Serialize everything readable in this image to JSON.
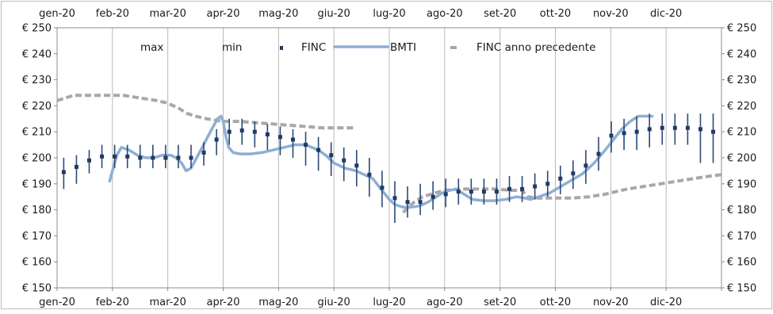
{
  "chart_data": {
    "type": "line",
    "title": "",
    "xlabel": "",
    "ylabel": "",
    "x_tick_labels": [
      "gen-20",
      "feb-20",
      "mar-20",
      "apr-20",
      "mag-20",
      "giu-20",
      "lug-20",
      "ago-20",
      "set-20",
      "ott-20",
      "nov-20",
      "dic-20"
    ],
    "y_tick_labels": [
      "€ 150",
      "€ 160",
      "€ 170",
      "€ 180",
      "€ 190",
      "€ 200",
      "€ 210",
      "€ 220",
      "€ 230",
      "€ 240",
      "€ 250"
    ],
    "ylim": [
      150,
      250
    ],
    "x_unit": "months (0 = start of gen-20)",
    "xlim": [
      0,
      12
    ],
    "grid": "vertical",
    "legend_position": "top",
    "legend": {
      "max": "max",
      "min": "min",
      "finc": "FINC",
      "bmti": "BMTI",
      "finc_prev": "FINC anno precedente"
    },
    "colors": {
      "finc": "#1f3b63",
      "range": "#2a4a74",
      "bmti": "#8eaed6",
      "finc_prev": "#a8a8a8",
      "grid": "#b9b9b9",
      "axis": "#8c8c8c",
      "frame": "#bcbcbc"
    },
    "weekly": [
      {
        "x": 0.12,
        "finc": 194.5,
        "min": 188,
        "max": 200
      },
      {
        "x": 0.35,
        "finc": 196.5,
        "min": 190,
        "max": 201
      },
      {
        "x": 0.58,
        "finc": 199,
        "min": 194,
        "max": 203
      },
      {
        "x": 0.81,
        "finc": 200.5,
        "min": 196,
        "max": 205
      },
      {
        "x": 1.04,
        "finc": 200.5,
        "min": 196,
        "max": 205
      },
      {
        "x": 1.27,
        "finc": 200.5,
        "min": 196,
        "max": 205
      },
      {
        "x": 1.5,
        "finc": 200,
        "min": 196,
        "max": 205
      },
      {
        "x": 1.73,
        "finc": 200,
        "min": 196,
        "max": 205
      },
      {
        "x": 1.96,
        "finc": 200,
        "min": 196,
        "max": 205
      },
      {
        "x": 2.19,
        "finc": 200,
        "min": 196,
        "max": 205
      },
      {
        "x": 2.42,
        "finc": 200,
        "min": 196,
        "max": 205
      },
      {
        "x": 2.65,
        "finc": 202,
        "min": 197,
        "max": 206
      },
      {
        "x": 2.88,
        "finc": 207,
        "min": 201,
        "max": 211
      },
      {
        "x": 3.11,
        "finc": 210,
        "min": 205,
        "max": 215
      },
      {
        "x": 3.34,
        "finc": 210.5,
        "min": 205,
        "max": 215
      },
      {
        "x": 3.57,
        "finc": 210,
        "min": 204,
        "max": 214
      },
      {
        "x": 3.8,
        "finc": 209,
        "min": 203,
        "max": 213
      },
      {
        "x": 4.03,
        "finc": 208,
        "min": 201,
        "max": 212
      },
      {
        "x": 4.26,
        "finc": 207,
        "min": 200,
        "max": 211
      },
      {
        "x": 4.49,
        "finc": 205,
        "min": 197,
        "max": 210
      },
      {
        "x": 4.72,
        "finc": 203,
        "min": 195,
        "max": 208
      },
      {
        "x": 4.95,
        "finc": 201,
        "min": 193,
        "max": 206
      },
      {
        "x": 5.18,
        "finc": 199,
        "min": 191,
        "max": 204
      },
      {
        "x": 5.41,
        "finc": 197,
        "min": 189,
        "max": 203
      },
      {
        "x": 5.64,
        "finc": 193.5,
        "min": 185,
        "max": 200
      },
      {
        "x": 5.87,
        "finc": 188.5,
        "min": 181,
        "max": 195
      },
      {
        "x": 6.1,
        "finc": 184.5,
        "min": 175,
        "max": 191
      },
      {
        "x": 6.33,
        "finc": 183,
        "min": 177,
        "max": 189
      },
      {
        "x": 6.56,
        "finc": 183,
        "min": 178,
        "max": 190
      },
      {
        "x": 6.79,
        "finc": 185,
        "min": 180,
        "max": 191
      },
      {
        "x": 7.02,
        "finc": 186,
        "min": 181,
        "max": 192
      },
      {
        "x": 7.25,
        "finc": 187,
        "min": 182,
        "max": 192
      },
      {
        "x": 7.48,
        "finc": 187,
        "min": 182,
        "max": 192
      },
      {
        "x": 7.71,
        "finc": 187,
        "min": 182,
        "max": 192
      },
      {
        "x": 7.94,
        "finc": 187,
        "min": 182,
        "max": 192
      },
      {
        "x": 8.17,
        "finc": 188,
        "min": 183,
        "max": 193
      },
      {
        "x": 8.4,
        "finc": 188,
        "min": 183,
        "max": 193
      },
      {
        "x": 8.63,
        "finc": 189,
        "min": 184,
        "max": 194
      },
      {
        "x": 8.86,
        "finc": 190,
        "min": 185,
        "max": 195
      },
      {
        "x": 9.09,
        "finc": 192,
        "min": 186,
        "max": 197
      },
      {
        "x": 9.32,
        "finc": 194,
        "min": 188,
        "max": 199
      },
      {
        "x": 9.55,
        "finc": 197,
        "min": 190,
        "max": 203
      },
      {
        "x": 9.78,
        "finc": 201.5,
        "min": 195,
        "max": 208
      },
      {
        "x": 10.01,
        "finc": 208.5,
        "min": 202,
        "max": 214
      },
      {
        "x": 10.24,
        "finc": 209.5,
        "min": 203,
        "max": 215
      },
      {
        "x": 10.47,
        "finc": 210,
        "min": 203,
        "max": 216
      },
      {
        "x": 10.7,
        "finc": 211,
        "min": 204,
        "max": 217
      },
      {
        "x": 10.93,
        "finc": 211.5,
        "min": 205,
        "max": 217
      },
      {
        "x": 11.16,
        "finc": 211.5,
        "min": 205,
        "max": 217
      },
      {
        "x": 11.39,
        "finc": 211.5,
        "min": 205,
        "max": 217
      },
      {
        "x": 11.62,
        "finc": 211,
        "min": 198,
        "max": 217
      },
      {
        "x": 11.85,
        "finc": 210,
        "min": 198,
        "max": 217
      }
    ],
    "bmti": [
      [
        0.95,
        191
      ],
      [
        1.0,
        195
      ],
      [
        1.08,
        201
      ],
      [
        1.16,
        204
      ],
      [
        1.3,
        203
      ],
      [
        1.45,
        201
      ],
      [
        1.6,
        200
      ],
      [
        1.75,
        200
      ],
      [
        1.9,
        201
      ],
      [
        2.05,
        201
      ],
      [
        2.15,
        200
      ],
      [
        2.25,
        198
      ],
      [
        2.33,
        195
      ],
      [
        2.42,
        196
      ],
      [
        2.52,
        200
      ],
      [
        2.62,
        204
      ],
      [
        2.72,
        208
      ],
      [
        2.82,
        212
      ],
      [
        2.9,
        215
      ],
      [
        2.96,
        216
      ],
      [
        3.0,
        214
      ],
      [
        3.05,
        208
      ],
      [
        3.1,
        204
      ],
      [
        3.18,
        202
      ],
      [
        3.3,
        201.5
      ],
      [
        3.5,
        201.5
      ],
      [
        3.7,
        202
      ],
      [
        3.9,
        203
      ],
      [
        4.1,
        204
      ],
      [
        4.3,
        205
      ],
      [
        4.5,
        205
      ],
      [
        4.6,
        204
      ],
      [
        4.72,
        203
      ],
      [
        4.85,
        201
      ],
      [
        5.0,
        198
      ],
      [
        5.2,
        196
      ],
      [
        5.4,
        195
      ],
      [
        5.55,
        193.5
      ],
      [
        5.7,
        192
      ],
      [
        5.85,
        188
      ],
      [
        6.0,
        184
      ],
      [
        6.1,
        182
      ],
      [
        6.25,
        181
      ],
      [
        6.4,
        181
      ],
      [
        6.55,
        181.5
      ],
      [
        6.7,
        183
      ],
      [
        6.85,
        185
      ],
      [
        7.0,
        187
      ],
      [
        7.2,
        188
      ],
      [
        7.35,
        186
      ],
      [
        7.5,
        184
      ],
      [
        7.7,
        183.5
      ],
      [
        7.9,
        183.5
      ],
      [
        8.1,
        184
      ],
      [
        8.3,
        185
      ],
      [
        8.45,
        184.5
      ],
      [
        8.55,
        184
      ],
      [
        8.7,
        185
      ],
      [
        8.9,
        186.5
      ],
      [
        9.1,
        189
      ],
      [
        9.3,
        191.5
      ],
      [
        9.5,
        194
      ],
      [
        9.7,
        198
      ],
      [
        9.9,
        203
      ],
      [
        10.05,
        207
      ],
      [
        10.2,
        211
      ],
      [
        10.35,
        214
      ],
      [
        10.5,
        216
      ],
      [
        10.65,
        216
      ],
      [
        10.75,
        216
      ]
    ],
    "finc_prev": [
      [
        0.0,
        222
      ],
      [
        0.3,
        224
      ],
      [
        0.6,
        224
      ],
      [
        0.9,
        224
      ],
      [
        1.2,
        224
      ],
      [
        1.5,
        223
      ],
      [
        1.8,
        222
      ],
      [
        2.0,
        221
      ],
      [
        2.2,
        219
      ],
      [
        2.35,
        217
      ],
      [
        2.5,
        216
      ],
      [
        2.7,
        215
      ],
      [
        3.0,
        214
      ],
      [
        3.3,
        214
      ],
      [
        3.6,
        213.5
      ],
      [
        3.9,
        213
      ],
      [
        4.2,
        212.5
      ],
      [
        4.5,
        212
      ],
      [
        4.8,
        211.5
      ],
      [
        5.1,
        211.5
      ],
      [
        5.35,
        211.5
      ],
      [
        6.25,
        179
      ],
      [
        6.35,
        181
      ],
      [
        6.45,
        183
      ],
      [
        6.6,
        185
      ],
      [
        6.75,
        186
      ],
      [
        7.0,
        187.5
      ],
      [
        7.3,
        188
      ],
      [
        7.6,
        188
      ],
      [
        7.9,
        188
      ],
      [
        8.2,
        187.5
      ],
      [
        8.4,
        187.5
      ],
      [
        8.5,
        185
      ],
      [
        8.7,
        184.5
      ],
      [
        9.0,
        184.5
      ],
      [
        9.3,
        184.5
      ],
      [
        9.6,
        185
      ],
      [
        9.9,
        186
      ],
      [
        10.1,
        187
      ],
      [
        10.3,
        188
      ],
      [
        10.6,
        189
      ],
      [
        10.9,
        190
      ],
      [
        11.2,
        191
      ],
      [
        11.5,
        192
      ],
      [
        11.8,
        193
      ],
      [
        12.0,
        193.5
      ]
    ]
  }
}
